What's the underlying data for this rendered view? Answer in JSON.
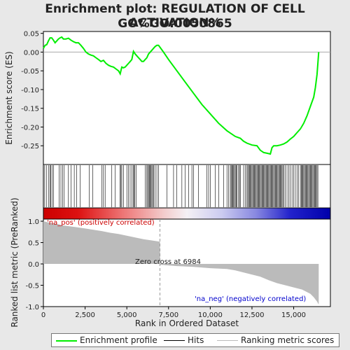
{
  "title_line1": "Enrichment plot: REGULATION OF CELL ACTIVATION%",
  "title_line2": "GO%GO:0050865",
  "chart_data": {
    "type": "line",
    "es_panel": {
      "ylabel": "Enrichment score (ES)",
      "ylim": [
        -0.3,
        0.055
      ],
      "yticks": [
        0.05,
        0.0,
        -0.05,
        -0.1,
        -0.15,
        -0.2,
        -0.25
      ],
      "ytick_labels": [
        "0.05",
        "0.00",
        "-0.05",
        "-0.10",
        "-0.15",
        "-0.20",
        "-0.25"
      ],
      "series": [
        {
          "name": "Enrichment profile",
          "color": "#00ee00",
          "x": [
            0,
            100,
            200,
            300,
            400,
            500,
            600,
            700,
            800,
            900,
            1000,
            1100,
            1200,
            1350,
            1500,
            1650,
            1800,
            1950,
            2100,
            2250,
            2400,
            2550,
            2700,
            2850,
            3000,
            3150,
            3300,
            3450,
            3600,
            3750,
            3900,
            4050,
            4200,
            4350,
            4500,
            4600,
            4700,
            4800,
            4900,
            5000,
            5100,
            5200,
            5300,
            5400,
            5500,
            5600,
            5700,
            5800,
            5900,
            6000,
            6100,
            6200,
            6300,
            6400,
            6500,
            6600,
            6700,
            6800,
            6900,
            7000,
            7200,
            7500,
            8000,
            8500,
            9000,
            9500,
            10000,
            10500,
            11000,
            11500,
            11800,
            12000,
            12200,
            12500,
            12800,
            13000,
            13200,
            13400,
            13600,
            13700,
            13800,
            14000,
            14200,
            14400,
            14600,
            14800,
            15000,
            15200,
            15400,
            15600,
            15800,
            16000,
            16200,
            16300,
            16400,
            16450,
            16500
          ],
          "y": [
            0.01,
            0.018,
            0.02,
            0.03,
            0.038,
            0.038,
            0.032,
            0.025,
            0.03,
            0.035,
            0.038,
            0.04,
            0.035,
            0.035,
            0.037,
            0.032,
            0.028,
            0.025,
            0.025,
            0.018,
            0.01,
            0.0,
            -0.005,
            -0.008,
            -0.01,
            -0.015,
            -0.02,
            -0.025,
            -0.022,
            -0.03,
            -0.035,
            -0.038,
            -0.04,
            -0.045,
            -0.05,
            -0.058,
            -0.04,
            -0.042,
            -0.04,
            -0.035,
            -0.03,
            -0.025,
            -0.02,
            0.002,
            -0.005,
            -0.01,
            -0.015,
            -0.02,
            -0.025,
            -0.025,
            -0.02,
            -0.015,
            -0.005,
            0.0,
            0.005,
            0.01,
            0.015,
            0.018,
            0.018,
            0.012,
            0.0,
            -0.02,
            -0.05,
            -0.08,
            -0.11,
            -0.14,
            -0.165,
            -0.19,
            -0.21,
            -0.225,
            -0.23,
            -0.238,
            -0.243,
            -0.248,
            -0.25,
            -0.262,
            -0.268,
            -0.27,
            -0.272,
            -0.255,
            -0.25,
            -0.25,
            -0.248,
            -0.245,
            -0.24,
            -0.232,
            -0.225,
            -0.215,
            -0.205,
            -0.19,
            -0.17,
            -0.145,
            -0.12,
            -0.095,
            -0.06,
            -0.03,
            0.0
          ]
        }
      ]
    },
    "hits": [
      80,
      200,
      320,
      400,
      430,
      520,
      600,
      950,
      1050,
      1150,
      1250,
      1500,
      1650,
      1850,
      2000,
      2200,
      2750,
      2950,
      3500,
      3600,
      3700,
      4100,
      4300,
      4600,
      4650,
      4700,
      4800,
      5000,
      5100,
      5200,
      5300,
      5400,
      5420,
      5480,
      5550,
      6100,
      6200,
      6250,
      6300,
      6350,
      6400,
      6450,
      6500,
      6550,
      6600,
      6700,
      6800,
      6900,
      7400,
      7800,
      8000,
      8300,
      8500,
      8700,
      8900,
      9000,
      9300,
      9800,
      9900,
      10000,
      10300,
      10500,
      10800,
      11000,
      11100,
      11200,
      11250,
      11300,
      11350,
      11400,
      11450,
      11500,
      11550,
      11600,
      11700,
      11750,
      11800,
      12000,
      12100,
      12200,
      12250,
      12300,
      12350,
      12400,
      12450,
      12500,
      12550,
      12600,
      12650,
      12700,
      12750,
      12800,
      12850,
      12900,
      12950,
      13000,
      13050,
      13100,
      13150,
      13200,
      13250,
      13300,
      13350,
      13400,
      13450,
      13500,
      13550,
      13600,
      13650,
      13700,
      13750,
      13800,
      13850,
      13900,
      13950,
      14000,
      14050,
      14100,
      14150,
      14200,
      14250,
      14300,
      14350,
      14400,
      14500,
      14600,
      14700,
      14800,
      14900,
      15000,
      15100,
      15200,
      15300,
      15400,
      15450,
      15500,
      15550,
      15600,
      15650,
      15700,
      15750,
      15800,
      15850,
      15900,
      15950,
      16000,
      16050,
      16100,
      16150,
      16200,
      16250,
      16300,
      16350,
      16400,
      16450
    ],
    "rank_panel": {
      "xlabel": "Rank in Ordered Dataset",
      "ylabel": "Ranked list metric (PreRanked)",
      "xlim": [
        0,
        17200
      ],
      "ylim": [
        -1.0,
        1.05
      ],
      "xticks": [
        0,
        2500,
        5000,
        7500,
        10000,
        12500,
        15000
      ],
      "xtick_labels": [
        "0",
        "2,500",
        "5,000",
        "7,500",
        "10,000",
        "12,500",
        "15,000"
      ],
      "yticks": [
        1.0,
        0.5,
        0.0,
        -0.5,
        -1.0
      ],
      "ytick_labels": [
        "1.0",
        "0.5",
        "0.0",
        "-0.5",
        "-1.0"
      ],
      "rank_x": [
        0,
        300,
        600,
        900,
        1200,
        1600,
        2000,
        2500,
        3000,
        3500,
        4000,
        4500,
        5000,
        5500,
        6000,
        6500,
        6984,
        7000,
        8000,
        9000,
        10000,
        11000,
        11500,
        12000,
        12500,
        13000,
        13500,
        14000,
        14500,
        15000,
        15500,
        16000,
        16200,
        16400,
        16500
      ],
      "rank_y": [
        1.0,
        0.97,
        0.95,
        0.93,
        0.9,
        0.88,
        0.86,
        0.83,
        0.8,
        0.77,
        0.73,
        0.7,
        0.66,
        0.62,
        0.58,
        0.55,
        0.52,
        -0.02,
        -0.05,
        -0.07,
        -0.1,
        -0.12,
        -0.15,
        -0.2,
        -0.25,
        -0.3,
        -0.38,
        -0.45,
        -0.5,
        -0.55,
        -0.6,
        -0.7,
        -0.78,
        -0.88,
        -0.95
      ],
      "zero_cross_label": "Zero cross at 6984",
      "zero_cross_x": 6984,
      "pos_label": "'na_pos' (positively correlated)",
      "neg_label": "'na_neg' (negatively correlated)"
    },
    "legend": {
      "placement": "bottom",
      "items": [
        {
          "name": "Enrichment profile",
          "color": "#00ee00"
        },
        {
          "name": "Hits",
          "color": "#000000"
        },
        {
          "name": "Ranking metric scores",
          "color": "#bbbbbb"
        }
      ]
    },
    "colors": {
      "pos_band": "#dd0000",
      "neg_band": "#0000cc",
      "zero_line": "#aaaaaa",
      "metric_fill": "#bbbbbb",
      "pos_label": "#cc0000",
      "neg_label": "#0000cc"
    }
  }
}
